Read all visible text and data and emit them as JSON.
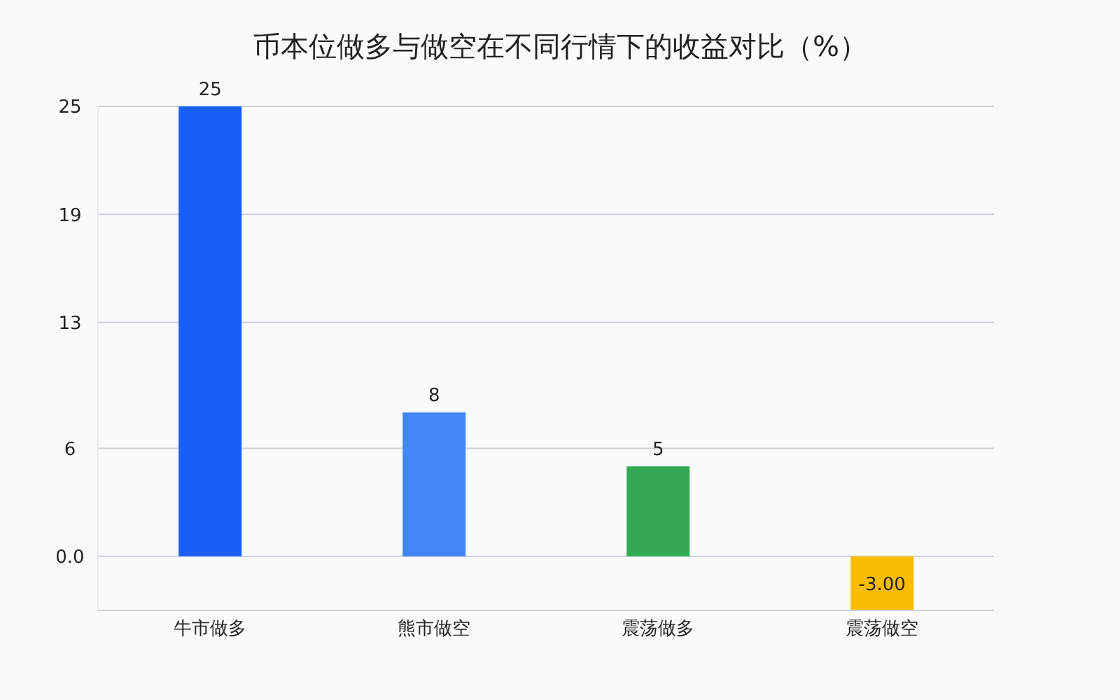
{
  "chart_data": {
    "type": "bar",
    "title": "币本位做多与做空在不同行情下的收益对比（%）",
    "categories": [
      "牛市做多",
      "熊市做空",
      "震荡做多",
      "震荡做空"
    ],
    "values": [
      25,
      8,
      5,
      -3
    ],
    "colors": [
      "#1a5ff5",
      "#4285f4",
      "#34a853",
      "#fbbc04"
    ],
    "value_labels": [
      "25",
      "8",
      "5",
      "-3.00"
    ],
    "ylim": [
      -3,
      25
    ],
    "yticks": [
      {
        "value": 0,
        "label": "0.0"
      },
      6,
      13,
      19,
      25
    ],
    "grid": "y"
  }
}
